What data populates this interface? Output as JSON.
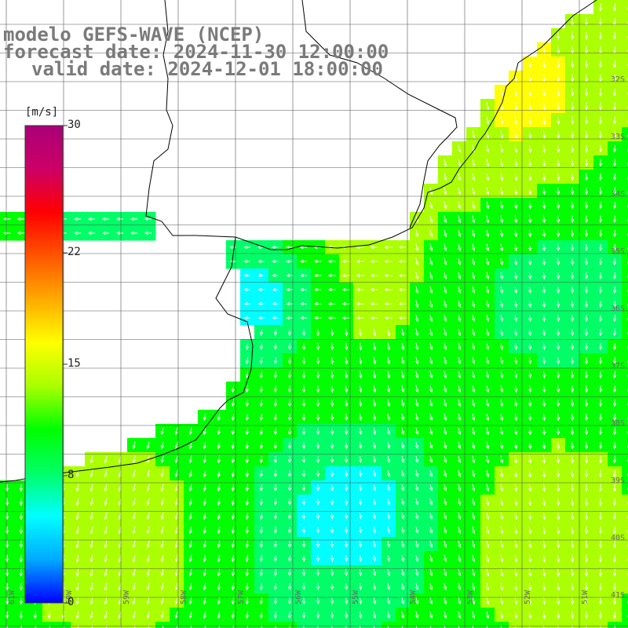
{
  "title": {
    "line1": "modelo GEFS-WAVE (NCEP)",
    "line2": "forecast date: 2024-11-30 12:00:00",
    "line3": "valid date: 2024-12-01 18:00:00"
  },
  "colorbar": {
    "unit": "[m/s]",
    "ticks": [
      {
        "label": "30",
        "value": 30
      },
      {
        "label": "22",
        "value": 22
      },
      {
        "label": "15",
        "value": 15
      },
      {
        "label": "8",
        "value": 8
      },
      {
        "label": "0",
        "value": 0
      }
    ],
    "min": 0,
    "max": 30,
    "colors": [
      "#0000ff",
      "#00aaff",
      "#00ffff",
      "#00ff66",
      "#00ff00",
      "#aaff00",
      "#ffff00",
      "#ffaa00",
      "#ff5500",
      "#ff0000",
      "#cc0066",
      "#aa0077"
    ]
  },
  "map": {
    "lat_labels": [
      "32S",
      "33S",
      "34S",
      "35S",
      "36S",
      "37S",
      "38S",
      "39S",
      "40S",
      "41S"
    ],
    "lon_labels": [
      "61W",
      "60W",
      "59W",
      "58W",
      "57W",
      "56W",
      "55W",
      "54W",
      "53W",
      "52W",
      "51W"
    ]
  }
}
